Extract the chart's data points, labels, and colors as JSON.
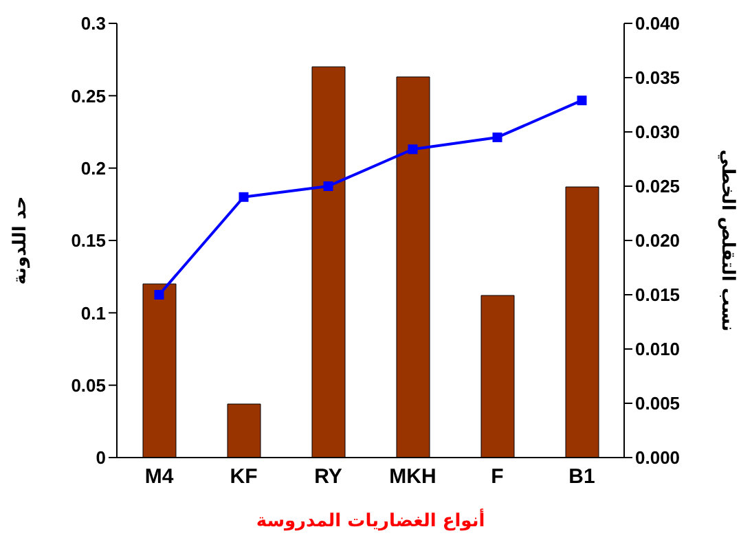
{
  "chart_data": {
    "type": "bar",
    "xlabel": "أنواع الغضاريات المدروسة",
    "ylabel": "حد اللدونة",
    "y2label": "نسب التقلص الخطي",
    "categories": [
      "M4",
      "KF",
      "RY",
      "MKH",
      "F",
      "B1"
    ],
    "series": [
      {
        "color": "#993300",
        "values": [
          0.12,
          0.037,
          0.27,
          0.263,
          0.112,
          0.187
        ]
      },
      {
        "type": "line",
        "axis": "y2",
        "color": "#0000ff",
        "marker": "square",
        "values": [
          0.015,
          0.024,
          0.025,
          0.0284,
          0.0295,
          0.0329
        ]
      }
    ],
    "ylim": [
      0,
      0.3
    ],
    "yticks": [
      0,
      0.05,
      0.1,
      0.15,
      0.2,
      0.25,
      0.3
    ],
    "y2lim": [
      0,
      0.04
    ],
    "y2ticks": [
      {
        "value": 0,
        "label": "0.000"
      },
      {
        "value": 0.005,
        "label": "0.005"
      },
      {
        "value": 0.01,
        "label": "0.010"
      },
      {
        "value": 0.015,
        "label": "0.015"
      },
      {
        "value": 0.02,
        "label": "0.020"
      },
      {
        "value": 0.025,
        "label": "0.025"
      },
      {
        "value": 0.03,
        "label": "0.030"
      },
      {
        "value": 0.035,
        "label": "0.035"
      },
      {
        "value": 0.04,
        "label": "0.040"
      }
    ],
    "grid": false,
    "legend": false
  }
}
